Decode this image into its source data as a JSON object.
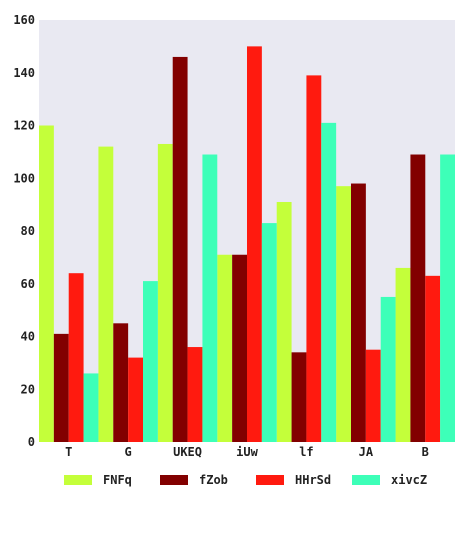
{
  "chart_data": {
    "type": "bar",
    "title": "",
    "xlabel": "",
    "ylabel": "",
    "categories": [
      "T",
      "G",
      "UKEQ",
      "iUw",
      "lf",
      "JA",
      "B"
    ],
    "ylim": [
      0,
      160
    ],
    "yticks": [
      0,
      20,
      40,
      60,
      80,
      100,
      120,
      140,
      160
    ],
    "grid": false,
    "legend_position": "bottom",
    "plot_background": "#e9e9f2",
    "series": [
      {
        "name": "FNFq",
        "color": "#c4ff3a",
        "values": [
          120,
          112,
          113,
          71,
          91,
          97,
          66
        ]
      },
      {
        "name": "fZob",
        "color": "#820000",
        "values": [
          41,
          45,
          146,
          71,
          34,
          98,
          109
        ]
      },
      {
        "name": "HHrSd",
        "color": "#ff1a0f",
        "values": [
          64,
          32,
          36,
          150,
          139,
          35,
          63
        ]
      },
      {
        "name": "xivcZ",
        "color": "#3dffb8",
        "values": [
          26,
          61,
          109,
          83,
          121,
          55,
          109
        ]
      }
    ]
  }
}
